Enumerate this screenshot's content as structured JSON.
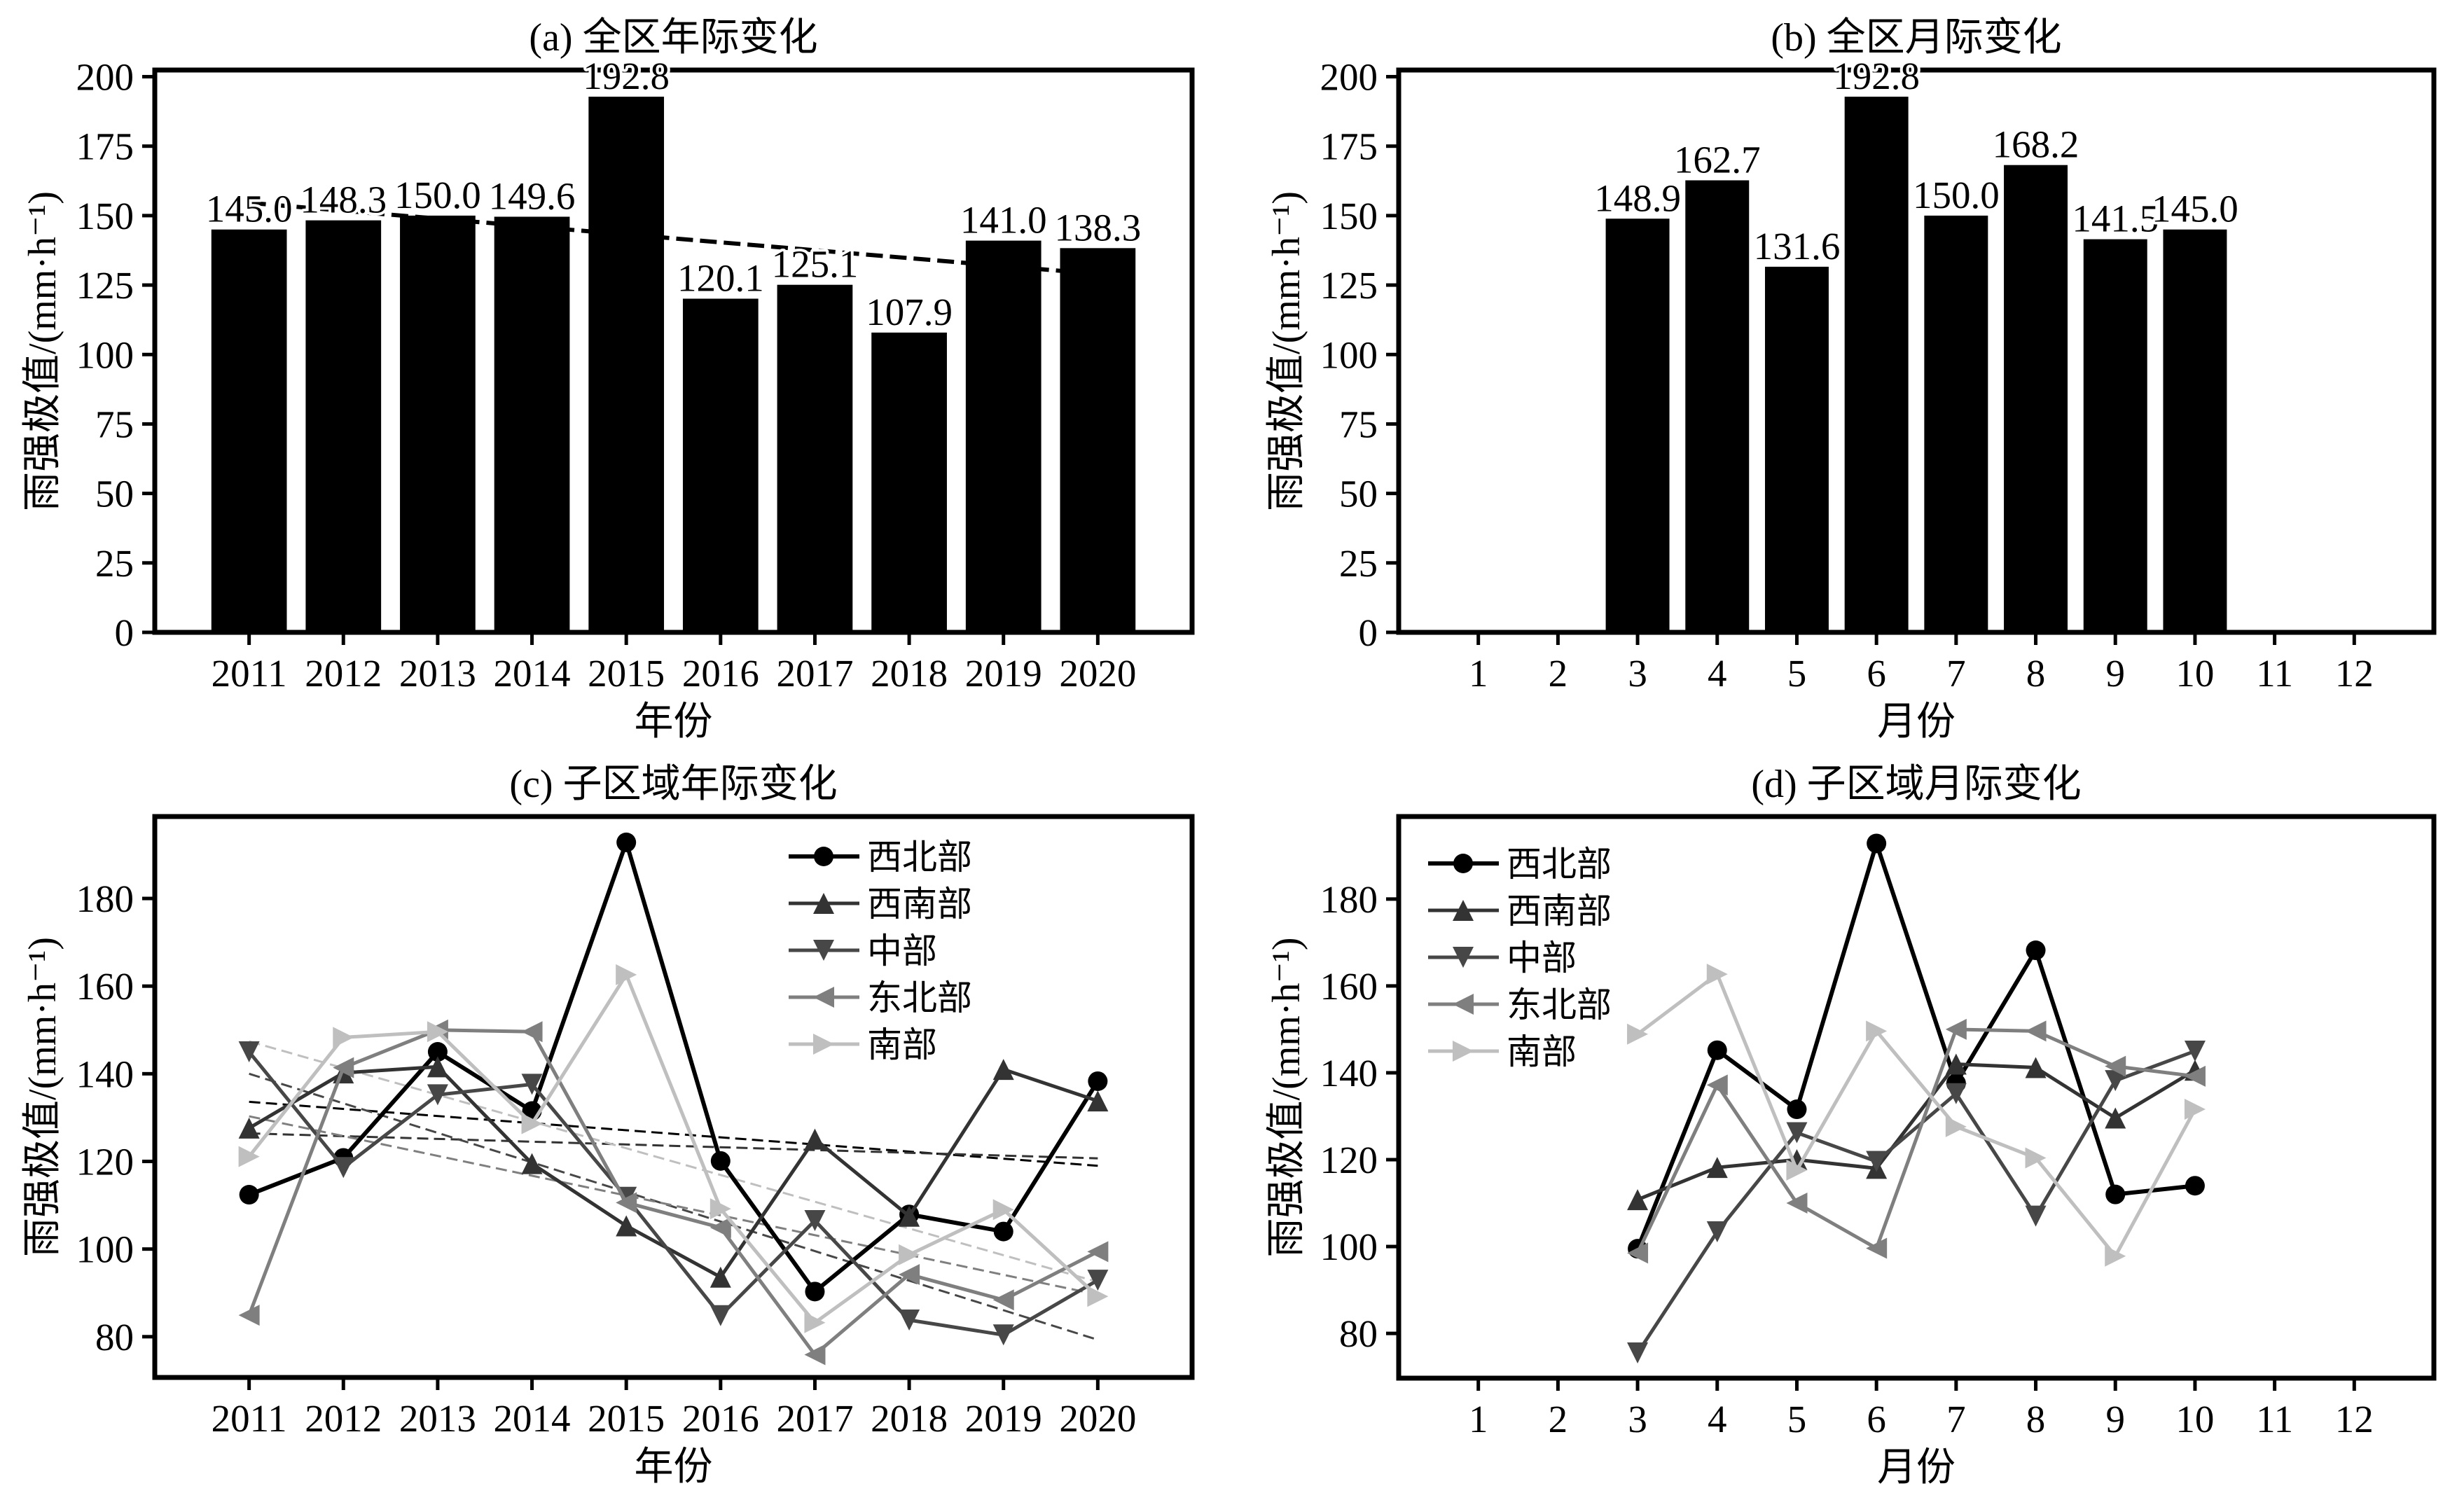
{
  "figure": {
    "background": "#ffffff"
  },
  "chart_data": [
    {
      "id": "a",
      "type": "bar",
      "title": "(a) 全区年际变化",
      "xlabel": "年份",
      "ylabel": "雨强极值/(mm·h⁻¹)",
      "categories": [
        "2011",
        "2012",
        "2013",
        "2014",
        "2015",
        "2016",
        "2017",
        "2018",
        "2019",
        "2020"
      ],
      "values": [
        145.0,
        148.3,
        150.0,
        149.6,
        192.8,
        120.1,
        125.1,
        107.9,
        141.0,
        138.3
      ],
      "data_labels": [
        "145.0",
        "148.3",
        "150.0",
        "149.6",
        "192.8",
        "120.1",
        "125.1",
        "107.9",
        "141.0",
        "138.3"
      ],
      "bar_color": "#000000",
      "xlim": [
        2010,
        2021
      ],
      "ylim": [
        0,
        202.4
      ],
      "yticks": [
        0,
        25,
        50,
        75,
        100,
        125,
        150,
        175,
        200
      ],
      "ytick_labels": [
        "0",
        "25",
        "50",
        "75",
        "100",
        "125",
        "150",
        "175",
        "200"
      ],
      "trend_line": {
        "method": "linear fit",
        "style": "dashed",
        "color": "#000000",
        "from": 154.6,
        "to": 129.0
      },
      "grid": false,
      "legend": null
    },
    {
      "id": "b",
      "type": "bar",
      "title": "(b) 全区月际变化",
      "xlabel": "月份",
      "ylabel": "雨强极值/(mm·h⁻¹)",
      "categories": [
        "1",
        "2",
        "3",
        "4",
        "5",
        "6",
        "7",
        "8",
        "9",
        "10",
        "11",
        "12"
      ],
      "values": [
        null,
        null,
        148.9,
        162.7,
        131.6,
        192.8,
        150.0,
        168.2,
        141.5,
        145.0,
        null,
        null
      ],
      "data_labels": [
        null,
        null,
        "148.9",
        "162.7",
        "131.6",
        "192.8",
        "150.0",
        "168.2",
        "141.5",
        "145.0",
        null,
        null
      ],
      "bar_color": "#000000",
      "xlim": [
        0,
        13
      ],
      "ylim": [
        0,
        202.4
      ],
      "yticks": [
        0,
        25,
        50,
        75,
        100,
        125,
        150,
        175,
        200
      ],
      "ytick_labels": [
        "0",
        "25",
        "50",
        "75",
        "100",
        "125",
        "150",
        "175",
        "200"
      ],
      "trend_line": null,
      "grid": false,
      "legend": null
    },
    {
      "id": "c",
      "type": "line",
      "title": "(c) 子区域年际变化",
      "xlabel": "年份",
      "ylabel": "雨强极值/(mm·h⁻¹)",
      "categories": [
        "2011",
        "2012",
        "2013",
        "2014",
        "2015",
        "2016",
        "2017",
        "2018",
        "2019",
        "2020"
      ],
      "xlim": [
        2010,
        2021
      ],
      "ylim": [
        70.7,
        198.7
      ],
      "yticks": [
        80,
        100,
        120,
        140,
        160,
        180
      ],
      "ytick_labels": [
        "80",
        "100",
        "120",
        "140",
        "160",
        "180"
      ],
      "trend_style": "dashed linear fit per series",
      "series": [
        {
          "name": "西北部",
          "color": "#000000",
          "marker": "circle",
          "values": [
            112.4,
            120.8,
            145.0,
            131.5,
            192.8,
            120.1,
            90.3,
            107.9,
            104.0,
            138.3
          ],
          "trend": {
            "from": 133.6,
            "to": 119.0
          }
        },
        {
          "name": "西南部",
          "color": "#333333",
          "marker": "triangle-up",
          "values": [
            127.6,
            140.2,
            141.6,
            119.5,
            105.3,
            93.6,
            125.1,
            107.5,
            141.0,
            133.8
          ],
          "trend": {
            "from": 126.4,
            "to": 120.7
          }
        },
        {
          "name": "中部",
          "color": "#474747",
          "marker": "triangle-down",
          "values": [
            145.0,
            118.6,
            135.2,
            137.6,
            111.8,
            84.8,
            106.5,
            83.8,
            80.4,
            92.9
          ],
          "trend": {
            "from": 140.0,
            "to": 79.3
          }
        },
        {
          "name": "东北部",
          "color": "#7f7f7f",
          "marker": "triangle-left",
          "values": [
            84.9,
            141.4,
            150.0,
            149.6,
            110.6,
            104.9,
            75.9,
            94.2,
            88.4,
            99.4
          ],
          "trend": {
            "from": 130.3,
            "to": 89.6
          }
        },
        {
          "name": "南部",
          "color": "#bfbfbf",
          "marker": "triangle-right",
          "values": [
            121.1,
            148.3,
            149.6,
            128.6,
            162.6,
            109.2,
            83.2,
            98.7,
            109.0,
            89.2
          ],
          "trend": {
            "from": 147.4,
            "to": 92.5
          }
        }
      ],
      "grid": false,
      "legend": {
        "position": "upper-right"
      }
    },
    {
      "id": "d",
      "type": "line",
      "title": "(d) 子区域月际变化",
      "xlabel": "月份",
      "ylabel": "雨强极值/(mm·h⁻¹)",
      "categories": [
        "1",
        "2",
        "3",
        "4",
        "5",
        "6",
        "7",
        "8",
        "9",
        "10",
        "11",
        "12"
      ],
      "xlim": [
        0,
        13
      ],
      "ylim": [
        69.7,
        199.0
      ],
      "yticks": [
        80,
        100,
        120,
        140,
        160,
        180
      ],
      "ytick_labels": [
        "80",
        "100",
        "120",
        "140",
        "160",
        "180"
      ],
      "series": [
        {
          "name": "西北部",
          "color": "#000000",
          "marker": "circle",
          "values": [
            null,
            null,
            99.5,
            145.2,
            131.6,
            192.8,
            137.6,
            168.2,
            112.0,
            114.0,
            null,
            null
          ]
        },
        {
          "name": "西南部",
          "color": "#333333",
          "marker": "triangle-up",
          "values": [
            null,
            null,
            110.8,
            118.2,
            120.0,
            118.0,
            142.0,
            141.2,
            129.6,
            140.6,
            null,
            null
          ]
        },
        {
          "name": "中部",
          "color": "#474747",
          "marker": "triangle-down",
          "values": [
            null,
            null,
            75.5,
            103.4,
            126.2,
            119.6,
            135.2,
            107.0,
            138.2,
            145.0,
            null,
            null
          ]
        },
        {
          "name": "东北部",
          "color": "#7f7f7f",
          "marker": "triangle-left",
          "values": [
            null,
            null,
            98.5,
            137.2,
            110.0,
            99.6,
            150.0,
            149.6,
            141.5,
            139.2,
            null,
            null
          ]
        },
        {
          "name": "南部",
          "color": "#bfbfbf",
          "marker": "triangle-right",
          "values": [
            null,
            null,
            148.9,
            162.7,
            117.6,
            149.6,
            127.6,
            120.4,
            97.8,
            131.6,
            null,
            null
          ]
        }
      ],
      "grid": false,
      "legend": {
        "position": "upper-left"
      }
    }
  ]
}
